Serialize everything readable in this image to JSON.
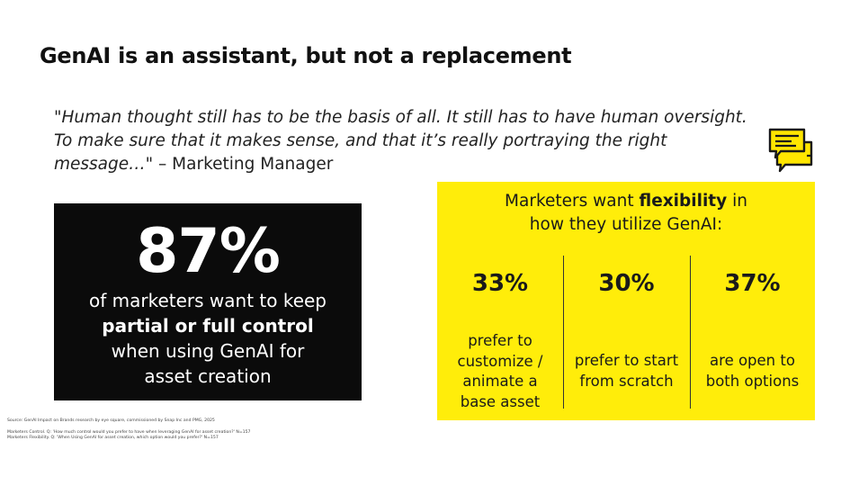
{
  "slide": {
    "title": "GenAI is an assistant, but not a replacement",
    "quote": {
      "text": "\"Human thought still has to be the basis of all.  It still has to have human oversight.  To make sure that it makes sense, and that it’s really portraying the right message…\"",
      "attribution": " – Marketing Manager"
    },
    "stat": {
      "percent": "87%",
      "line1": "of marketers want to keep",
      "line2_bold": "partial or full control",
      "line3": "when using GenAI for",
      "line4": "asset creation"
    },
    "flex": {
      "heading_pre": "Marketers want ",
      "heading_bold": "flexibility",
      "heading_post": " in",
      "heading_line2": "how they utilize GenAI:",
      "options": [
        {
          "percent": "33%",
          "lines": [
            "prefer to",
            "customize /",
            "animate a",
            "base asset"
          ]
        },
        {
          "percent": "30%",
          "lines": [
            "prefer to start",
            "from scratch"
          ]
        },
        {
          "percent": "37%",
          "lines": [
            "are open to",
            "both options"
          ]
        }
      ]
    },
    "sources": [
      "Source: GenAI Impact on Brands research by eye square, commissioned by Snap Inc and PMG, 2025",
      "Marketers Control. Q: 'How much control would you prefer to have when leveraging GenAI for asset creation?' N=157",
      "Marketers Flexibility. Q: 'When Using GenAI for asset creation, which option would you prefer?' N=157"
    ],
    "colors": {
      "accent_yellow": "#ffed0a",
      "stat_box_bg": "#0b0b0b",
      "icon_yellow": "#ffe600"
    },
    "icons": [
      "chat-bubbles-icon"
    ]
  }
}
